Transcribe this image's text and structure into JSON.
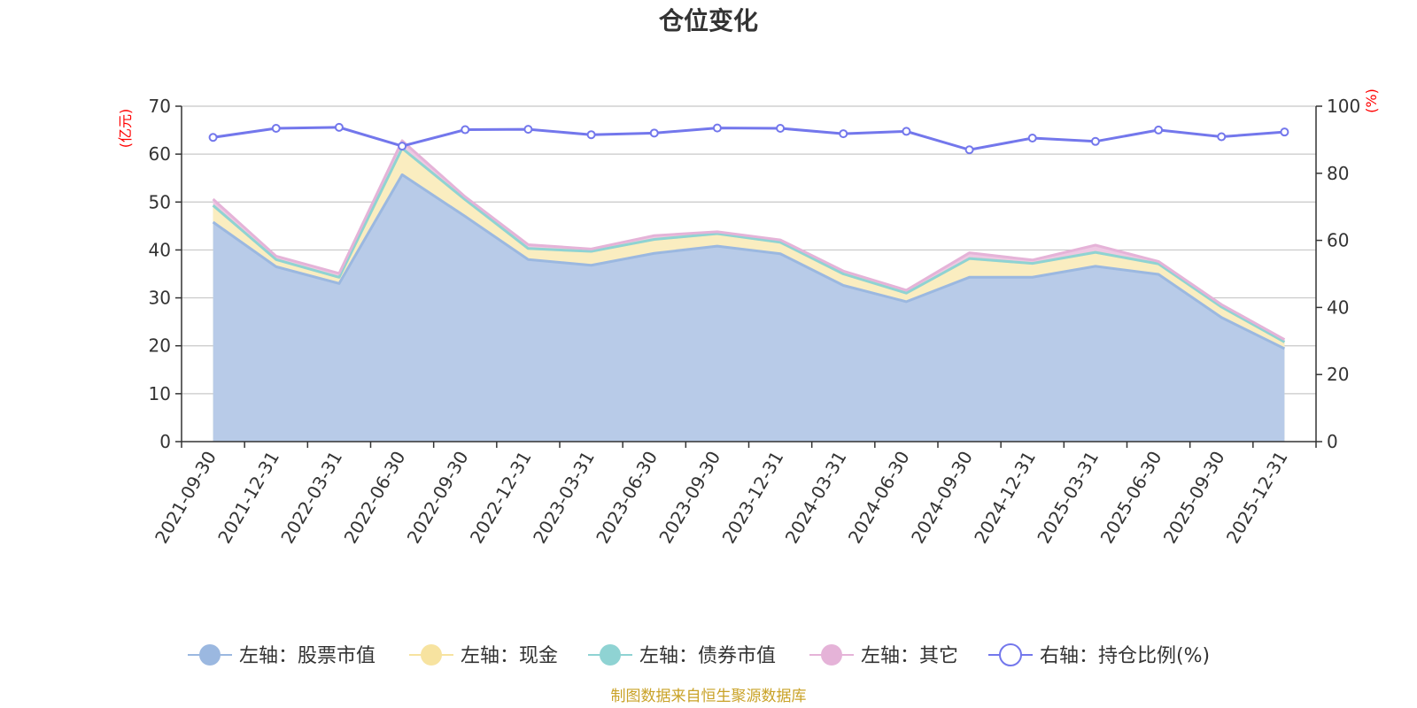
{
  "chart_data": {
    "type": "area",
    "title": "仓位变化",
    "left_axis_unit": "(亿元)",
    "right_axis_unit": "(%)",
    "source": "制图数据来自恒生聚源数据库",
    "categories": [
      "2021-09-30",
      "2021-12-31",
      "2022-03-31",
      "2022-06-30",
      "2022-09-30",
      "2022-12-31",
      "2023-03-31",
      "2023-06-30",
      "2023-09-30",
      "2023-12-31",
      "2024-03-31",
      "2024-06-30",
      "2024-09-30",
      "2024-12-31",
      "2025-03-31",
      "2025-06-30",
      "2025-09-30",
      "2025-12-31"
    ],
    "left_ylim": [
      0,
      70
    ],
    "left_ticks": [
      0,
      10,
      20,
      30,
      40,
      50,
      60,
      70
    ],
    "right_ylim": [
      0,
      100
    ],
    "right_ticks": [
      0,
      20,
      40,
      60,
      80,
      100
    ],
    "series": [
      {
        "name": "左轴：股票市值",
        "axis": "left",
        "stack": true,
        "color": "#9bb8e0",
        "fill": "#b8cbe8",
        "values": [
          45.8,
          36.5,
          33.0,
          55.7,
          47.0,
          38.0,
          36.8,
          39.3,
          40.8,
          39.2,
          32.6,
          29.2,
          34.3,
          34.3,
          36.6,
          34.9,
          25.9,
          19.4
        ]
      },
      {
        "name": "左轴：现金",
        "axis": "left",
        "stack": true,
        "color": "#f7e3a0",
        "fill": "#faedc0",
        "values": [
          3.5,
          1.5,
          1.3,
          5.5,
          3.5,
          2.3,
          2.9,
          2.9,
          2.6,
          2.4,
          2.4,
          1.8,
          3.9,
          2.9,
          2.9,
          2.2,
          2.2,
          1.4
        ]
      },
      {
        "name": "左轴：债券市值",
        "axis": "left",
        "stack": true,
        "color": "#8fd3d3",
        "fill": "#b5e3e3",
        "values": [
          0,
          0,
          0,
          0,
          0,
          0,
          0,
          0,
          0,
          0,
          0,
          0,
          0,
          0,
          0,
          0,
          0,
          0
        ]
      },
      {
        "name": "左轴：其它",
        "axis": "left",
        "stack": true,
        "color": "#e5b3d8",
        "fill": "#eec8e3",
        "values": [
          1.3,
          0.7,
          0.8,
          1.6,
          0.6,
          0.8,
          0.5,
          0.8,
          0.4,
          0.5,
          0.6,
          0.6,
          1.2,
          0.7,
          1.5,
          0.5,
          0.5,
          0.5
        ]
      },
      {
        "name": "右轴：持仓比例(%)",
        "axis": "right",
        "stack": false,
        "color": "#7377ec",
        "values": [
          90.7,
          93.4,
          93.7,
          88.1,
          93.0,
          93.1,
          91.5,
          92.0,
          93.5,
          93.4,
          91.8,
          92.5,
          87.0,
          90.5,
          89.5,
          92.9,
          90.9,
          92.3
        ]
      }
    ]
  }
}
